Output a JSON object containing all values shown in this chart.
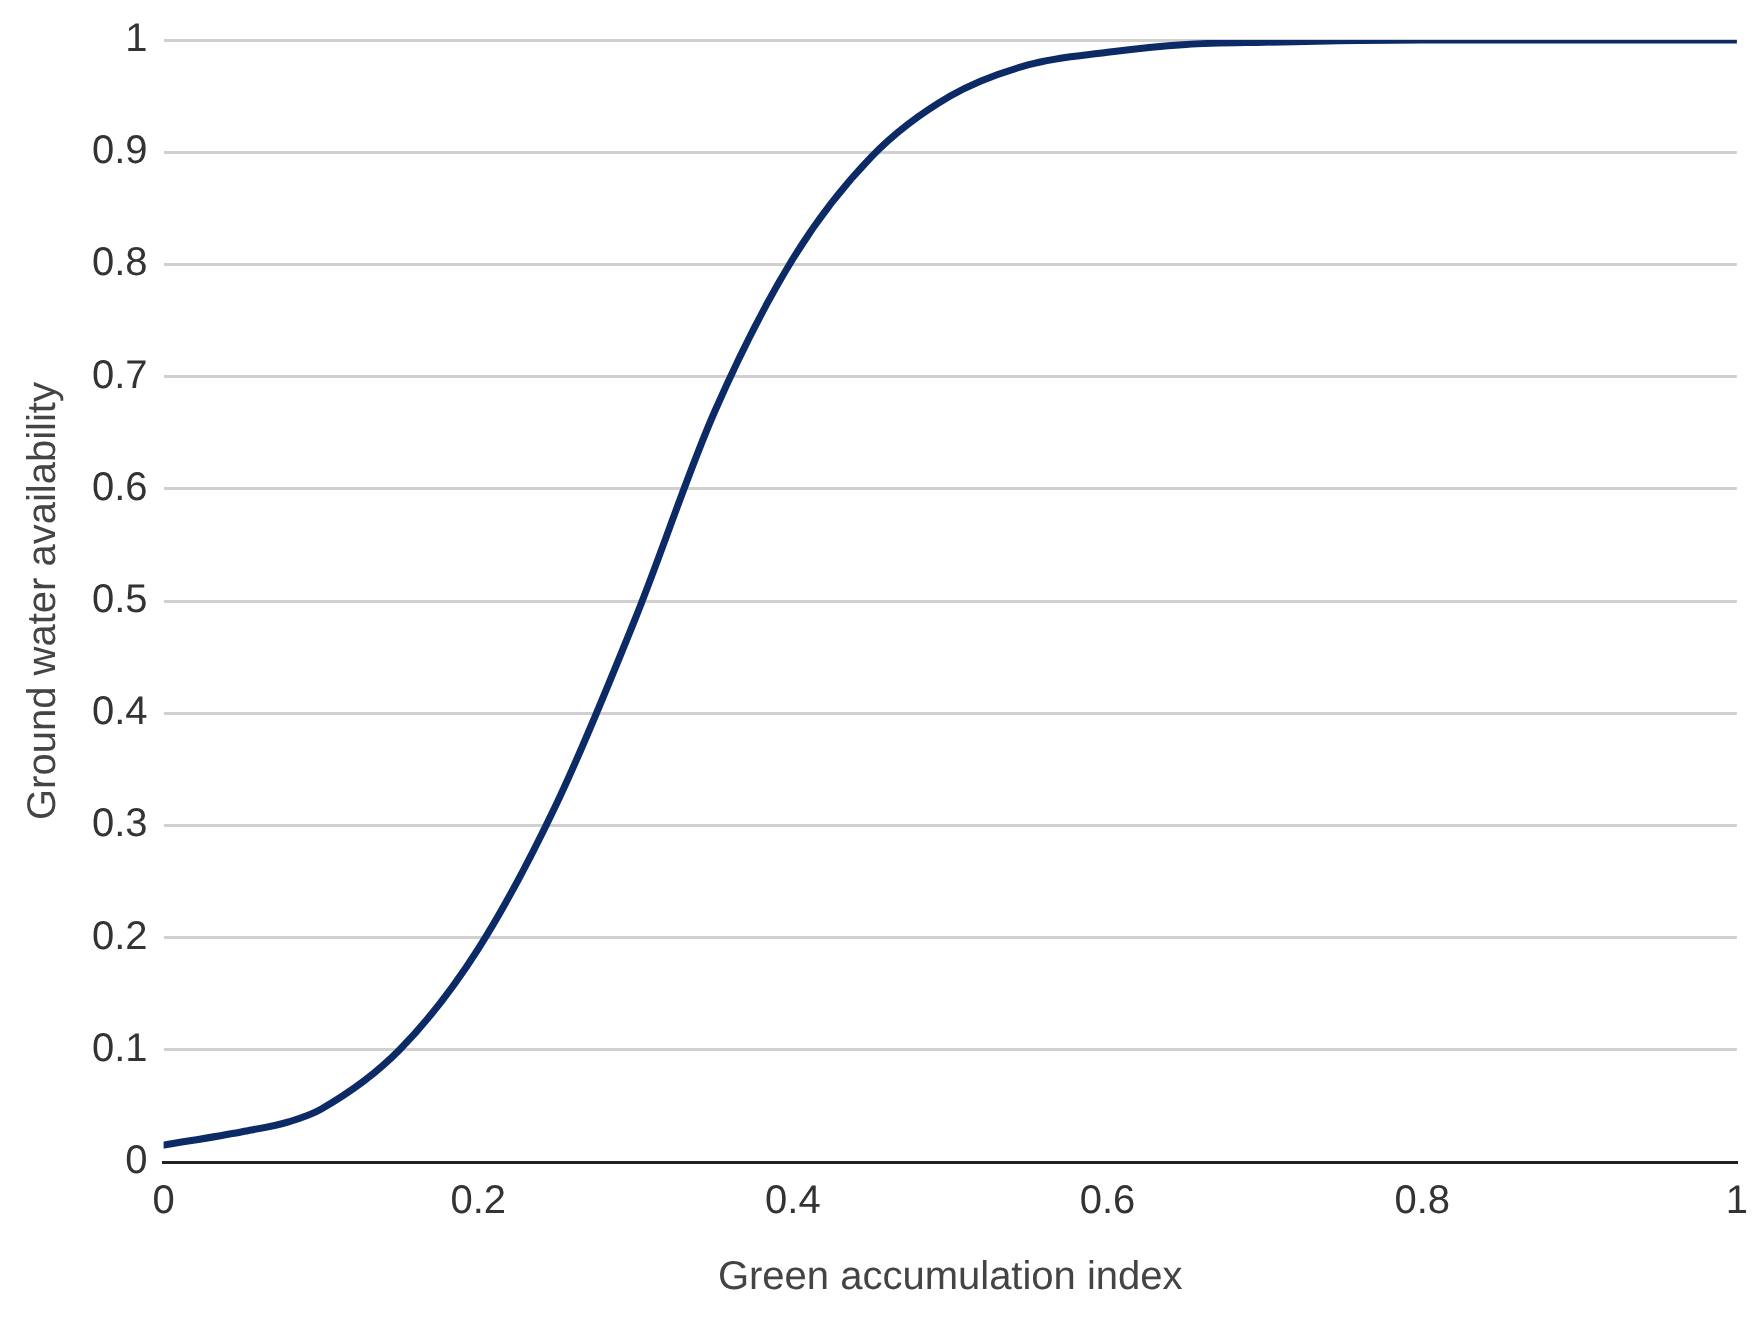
{
  "chart_data": {
    "type": "line",
    "xlabel": "Green accumulation index",
    "ylabel": "Ground water availability",
    "x": [
      0,
      0.05,
      0.08,
      0.1,
      0.15,
      0.2,
      0.25,
      0.3,
      0.35,
      0.4,
      0.45,
      0.5,
      0.55,
      0.6,
      0.65,
      0.7,
      0.8,
      0.9,
      1
    ],
    "series": [
      {
        "color": "#0c2a66",
        "values": [
          0.015,
          0.027,
          0.036,
          0.047,
          0.1,
          0.19,
          0.32,
          0.485,
          0.668,
          0.805,
          0.896,
          0.95,
          0.978,
          0.989,
          0.996,
          0.998,
          1,
          1,
          1
        ]
      }
    ],
    "xlim": [
      0,
      1
    ],
    "xticks": [
      0,
      0.2,
      0.4,
      0.6,
      0.8,
      1
    ],
    "ylim": [
      0,
      1
    ],
    "yticks": [
      0,
      0.1,
      0.2,
      0.3,
      0.4,
      0.5,
      0.6,
      0.7,
      0.8,
      0.9,
      1
    ],
    "grid": "y",
    "legend": false,
    "marker": "none",
    "line_style": "solid"
  }
}
